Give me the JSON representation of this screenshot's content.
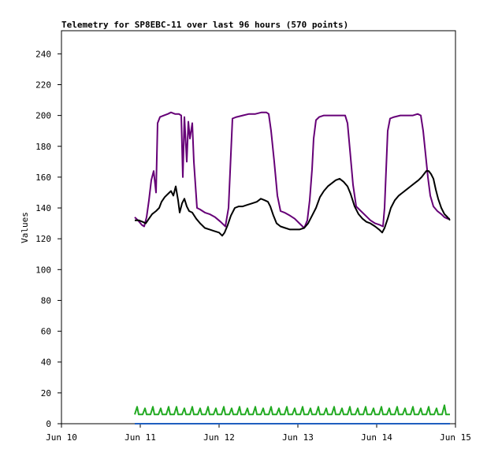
{
  "chart_data": {
    "type": "line",
    "title": "Telemetry for SP8EBC-11 over last 96 hours (570 points)",
    "xlabel": "",
    "ylabel": "Values",
    "xlim": [
      0,
      5
    ],
    "ylim": [
      0,
      255
    ],
    "x_tick_labels": [
      "Jun 10",
      "Jun 11",
      "Jun 12",
      "Jun 13",
      "Jun 14",
      "Jun 15"
    ],
    "y_ticks": [
      0,
      20,
      40,
      60,
      80,
      100,
      120,
      140,
      160,
      180,
      200,
      220,
      240
    ],
    "grid": false,
    "legend": "none",
    "series": [
      {
        "color": "#660077",
        "points": [
          [
            0.93,
            134
          ],
          [
            0.97,
            132
          ],
          [
            1.02,
            129
          ],
          [
            1.05,
            128
          ],
          [
            1.08,
            134
          ],
          [
            1.11,
            145
          ],
          [
            1.14,
            158
          ],
          [
            1.17,
            164
          ],
          [
            1.2,
            150
          ],
          [
            1.22,
            195
          ],
          [
            1.25,
            199
          ],
          [
            1.3,
            200
          ],
          [
            1.35,
            201
          ],
          [
            1.39,
            202
          ],
          [
            1.44,
            201
          ],
          [
            1.49,
            201
          ],
          [
            1.52,
            200
          ],
          [
            1.54,
            160
          ],
          [
            1.56,
            199
          ],
          [
            1.59,
            170
          ],
          [
            1.61,
            196
          ],
          [
            1.63,
            185
          ],
          [
            1.66,
            195
          ],
          [
            1.68,
            170
          ],
          [
            1.7,
            155
          ],
          [
            1.72,
            140
          ],
          [
            1.76,
            139
          ],
          [
            1.82,
            137
          ],
          [
            1.88,
            136
          ],
          [
            1.95,
            134
          ],
          [
            2.02,
            131
          ],
          [
            2.08,
            128
          ],
          [
            2.12,
            140
          ],
          [
            2.15,
            175
          ],
          [
            2.17,
            198
          ],
          [
            2.22,
            199
          ],
          [
            2.3,
            200
          ],
          [
            2.38,
            201
          ],
          [
            2.46,
            201
          ],
          [
            2.54,
            202
          ],
          [
            2.6,
            202
          ],
          [
            2.63,
            201
          ],
          [
            2.66,
            190
          ],
          [
            2.7,
            170
          ],
          [
            2.74,
            148
          ],
          [
            2.78,
            138
          ],
          [
            2.83,
            137
          ],
          [
            2.9,
            135
          ],
          [
            2.96,
            133
          ],
          [
            3.02,
            130
          ],
          [
            3.08,
            127
          ],
          [
            3.12,
            132
          ],
          [
            3.15,
            145
          ],
          [
            3.18,
            165
          ],
          [
            3.2,
            185
          ],
          [
            3.23,
            197
          ],
          [
            3.27,
            199
          ],
          [
            3.33,
            200
          ],
          [
            3.4,
            200
          ],
          [
            3.48,
            200
          ],
          [
            3.55,
            200
          ],
          [
            3.6,
            200
          ],
          [
            3.63,
            195
          ],
          [
            3.66,
            178
          ],
          [
            3.7,
            155
          ],
          [
            3.74,
            141
          ],
          [
            3.8,
            138
          ],
          [
            3.86,
            135
          ],
          [
            3.92,
            132
          ],
          [
            3.98,
            130
          ],
          [
            4.04,
            129
          ],
          [
            4.08,
            128
          ],
          [
            4.1,
            140
          ],
          [
            4.12,
            165
          ],
          [
            4.14,
            190
          ],
          [
            4.17,
            198
          ],
          [
            4.22,
            199
          ],
          [
            4.3,
            200
          ],
          [
            4.38,
            200
          ],
          [
            4.46,
            200
          ],
          [
            4.52,
            201
          ],
          [
            4.56,
            200
          ],
          [
            4.59,
            190
          ],
          [
            4.62,
            175
          ],
          [
            4.65,
            160
          ],
          [
            4.68,
            148
          ],
          [
            4.72,
            141
          ],
          [
            4.77,
            138
          ],
          [
            4.82,
            136
          ],
          [
            4.86,
            134
          ],
          [
            4.9,
            133
          ],
          [
            4.93,
            133
          ]
        ]
      },
      {
        "color": "#000000",
        "points": [
          [
            0.93,
            132
          ],
          [
            0.98,
            132
          ],
          [
            1.03,
            131
          ],
          [
            1.07,
            130
          ],
          [
            1.11,
            133
          ],
          [
            1.15,
            136
          ],
          [
            1.2,
            138
          ],
          [
            1.24,
            140
          ],
          [
            1.27,
            144
          ],
          [
            1.31,
            147
          ],
          [
            1.35,
            149
          ],
          [
            1.39,
            151
          ],
          [
            1.42,
            148
          ],
          [
            1.45,
            154
          ],
          [
            1.48,
            145
          ],
          [
            1.5,
            137
          ],
          [
            1.53,
            143
          ],
          [
            1.56,
            146
          ],
          [
            1.59,
            141
          ],
          [
            1.62,
            138
          ],
          [
            1.66,
            137
          ],
          [
            1.71,
            133
          ],
          [
            1.76,
            130
          ],
          [
            1.82,
            127
          ],
          [
            1.88,
            126
          ],
          [
            1.94,
            125
          ],
          [
            2.0,
            124
          ],
          [
            2.04,
            122
          ],
          [
            2.07,
            124
          ],
          [
            2.11,
            129
          ],
          [
            2.15,
            135
          ],
          [
            2.2,
            140
          ],
          [
            2.25,
            141
          ],
          [
            2.3,
            141
          ],
          [
            2.36,
            142
          ],
          [
            2.42,
            143
          ],
          [
            2.48,
            144
          ],
          [
            2.53,
            146
          ],
          [
            2.58,
            145
          ],
          [
            2.62,
            144
          ],
          [
            2.65,
            141
          ],
          [
            2.69,
            135
          ],
          [
            2.73,
            130
          ],
          [
            2.78,
            128
          ],
          [
            2.84,
            127
          ],
          [
            2.9,
            126
          ],
          [
            2.96,
            126
          ],
          [
            3.02,
            126
          ],
          [
            3.08,
            127
          ],
          [
            3.13,
            130
          ],
          [
            3.18,
            135
          ],
          [
            3.23,
            140
          ],
          [
            3.28,
            147
          ],
          [
            3.33,
            151
          ],
          [
            3.38,
            154
          ],
          [
            3.43,
            156
          ],
          [
            3.48,
            158
          ],
          [
            3.53,
            159
          ],
          [
            3.58,
            157
          ],
          [
            3.63,
            154
          ],
          [
            3.67,
            149
          ],
          [
            3.72,
            141
          ],
          [
            3.77,
            136
          ],
          [
            3.82,
            133
          ],
          [
            3.87,
            131
          ],
          [
            3.92,
            130
          ],
          [
            3.98,
            128
          ],
          [
            4.03,
            126
          ],
          [
            4.07,
            124
          ],
          [
            4.1,
            127
          ],
          [
            4.14,
            133
          ],
          [
            4.18,
            140
          ],
          [
            4.23,
            145
          ],
          [
            4.28,
            148
          ],
          [
            4.33,
            150
          ],
          [
            4.38,
            152
          ],
          [
            4.43,
            154
          ],
          [
            4.48,
            156
          ],
          [
            4.53,
            158
          ],
          [
            4.57,
            160
          ],
          [
            4.6,
            162
          ],
          [
            4.63,
            164
          ],
          [
            4.66,
            164
          ],
          [
            4.69,
            162
          ],
          [
            4.72,
            159
          ],
          [
            4.75,
            152
          ],
          [
            4.78,
            146
          ],
          [
            4.82,
            140
          ],
          [
            4.86,
            136
          ],
          [
            4.9,
            134
          ],
          [
            4.93,
            132
          ]
        ]
      },
      {
        "color": "#22aa22",
        "points": [
          [
            0.93,
            6
          ],
          [
            0.96,
            11
          ],
          [
            0.98,
            6
          ],
          [
            1.03,
            6
          ],
          [
            1.06,
            10
          ],
          [
            1.08,
            6
          ],
          [
            1.13,
            6
          ],
          [
            1.16,
            11
          ],
          [
            1.18,
            6
          ],
          [
            1.23,
            6
          ],
          [
            1.26,
            10
          ],
          [
            1.28,
            6
          ],
          [
            1.33,
            6
          ],
          [
            1.36,
            11
          ],
          [
            1.38,
            6
          ],
          [
            1.43,
            6
          ],
          [
            1.46,
            11
          ],
          [
            1.48,
            6
          ],
          [
            1.53,
            6
          ],
          [
            1.56,
            10
          ],
          [
            1.58,
            6
          ],
          [
            1.63,
            6
          ],
          [
            1.66,
            11
          ],
          [
            1.68,
            6
          ],
          [
            1.73,
            6
          ],
          [
            1.76,
            10
          ],
          [
            1.78,
            6
          ],
          [
            1.83,
            6
          ],
          [
            1.86,
            11
          ],
          [
            1.88,
            6
          ],
          [
            1.93,
            6
          ],
          [
            1.96,
            10
          ],
          [
            1.98,
            6
          ],
          [
            2.03,
            6
          ],
          [
            2.06,
            11
          ],
          [
            2.08,
            6
          ],
          [
            2.13,
            6
          ],
          [
            2.16,
            10
          ],
          [
            2.18,
            6
          ],
          [
            2.23,
            6
          ],
          [
            2.26,
            11
          ],
          [
            2.28,
            6
          ],
          [
            2.33,
            6
          ],
          [
            2.36,
            10
          ],
          [
            2.38,
            6
          ],
          [
            2.43,
            6
          ],
          [
            2.46,
            11
          ],
          [
            2.48,
            6
          ],
          [
            2.53,
            6
          ],
          [
            2.56,
            10
          ],
          [
            2.58,
            6
          ],
          [
            2.63,
            6
          ],
          [
            2.66,
            11
          ],
          [
            2.68,
            6
          ],
          [
            2.73,
            6
          ],
          [
            2.76,
            10
          ],
          [
            2.78,
            6
          ],
          [
            2.83,
            6
          ],
          [
            2.86,
            11
          ],
          [
            2.88,
            6
          ],
          [
            2.93,
            6
          ],
          [
            2.96,
            10
          ],
          [
            2.98,
            6
          ],
          [
            3.03,
            6
          ],
          [
            3.06,
            11
          ],
          [
            3.08,
            6
          ],
          [
            3.13,
            6
          ],
          [
            3.16,
            10
          ],
          [
            3.18,
            6
          ],
          [
            3.23,
            6
          ],
          [
            3.26,
            11
          ],
          [
            3.28,
            6
          ],
          [
            3.33,
            6
          ],
          [
            3.36,
            10
          ],
          [
            3.38,
            6
          ],
          [
            3.43,
            6
          ],
          [
            3.46,
            11
          ],
          [
            3.48,
            6
          ],
          [
            3.53,
            6
          ],
          [
            3.56,
            10
          ],
          [
            3.58,
            6
          ],
          [
            3.63,
            6
          ],
          [
            3.66,
            11
          ],
          [
            3.68,
            6
          ],
          [
            3.73,
            6
          ],
          [
            3.76,
            10
          ],
          [
            3.78,
            6
          ],
          [
            3.83,
            6
          ],
          [
            3.86,
            11
          ],
          [
            3.88,
            6
          ],
          [
            3.93,
            6
          ],
          [
            3.96,
            10
          ],
          [
            3.98,
            6
          ],
          [
            4.03,
            6
          ],
          [
            4.06,
            11
          ],
          [
            4.08,
            6
          ],
          [
            4.13,
            6
          ],
          [
            4.16,
            10
          ],
          [
            4.18,
            6
          ],
          [
            4.23,
            6
          ],
          [
            4.26,
            11
          ],
          [
            4.28,
            6
          ],
          [
            4.33,
            6
          ],
          [
            4.36,
            10
          ],
          [
            4.38,
            6
          ],
          [
            4.43,
            6
          ],
          [
            4.46,
            11
          ],
          [
            4.48,
            6
          ],
          [
            4.53,
            6
          ],
          [
            4.56,
            10
          ],
          [
            4.58,
            6
          ],
          [
            4.63,
            6
          ],
          [
            4.66,
            11
          ],
          [
            4.68,
            6
          ],
          [
            4.73,
            6
          ],
          [
            4.76,
            10
          ],
          [
            4.78,
            6
          ],
          [
            4.83,
            6
          ],
          [
            4.86,
            12
          ],
          [
            4.88,
            6
          ],
          [
            4.93,
            6
          ]
        ]
      },
      {
        "color": "#1f5fbf",
        "points": [
          [
            0.93,
            0
          ],
          [
            4.93,
            0
          ]
        ]
      }
    ]
  }
}
